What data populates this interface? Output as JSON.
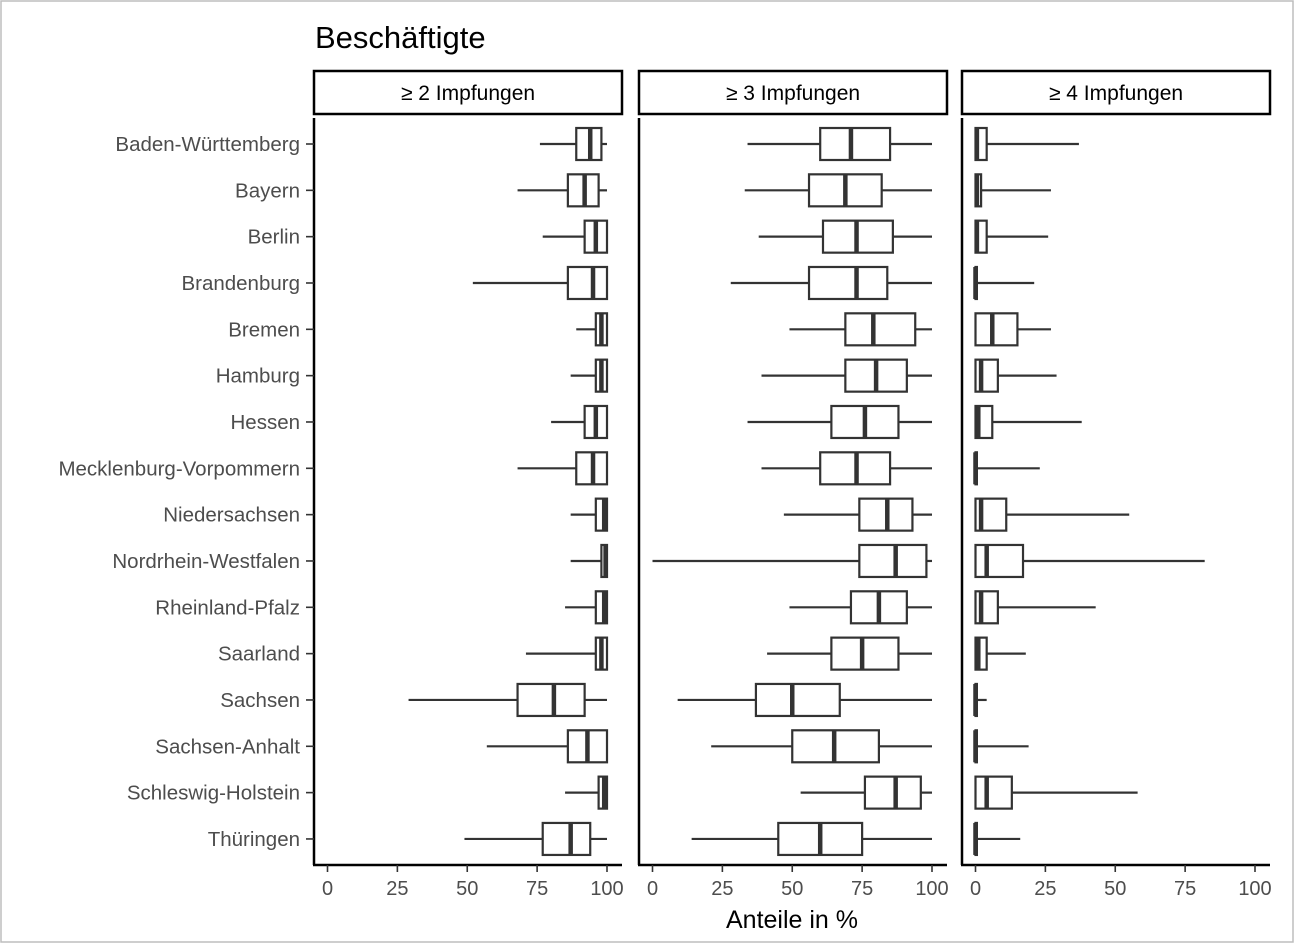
{
  "chart_data": {
    "type": "boxplot",
    "title": "Beschäftigte",
    "xlabel": "Anteile in %",
    "ylabel": "",
    "xlim": [
      0,
      100
    ],
    "x_ticks": [
      0,
      25,
      50,
      75,
      100
    ],
    "categories": [
      "Baden-Württemberg",
      "Bayern",
      "Berlin",
      "Brandenburg",
      "Bremen",
      "Hamburg",
      "Hessen",
      "Mecklenburg-Vorpommern",
      "Niedersachsen",
      "Nordrhein-Westfalen",
      "Rheinland-Pfalz",
      "Saarland",
      "Sachsen",
      "Sachsen-Anhalt",
      "Schleswig-Holstein",
      "Thüringen"
    ],
    "grid": false,
    "panels": [
      {
        "label": "≥ 2 Impfungen",
        "boxes": [
          {
            "min": 76,
            "q1": 89,
            "median": 94,
            "q3": 98,
            "max": 100
          },
          {
            "min": 68,
            "q1": 86,
            "median": 92,
            "q3": 97,
            "max": 100
          },
          {
            "min": 77,
            "q1": 92,
            "median": 96,
            "q3": 100,
            "max": 100
          },
          {
            "min": 52,
            "q1": 86,
            "median": 95,
            "q3": 100,
            "max": 100
          },
          {
            "min": 89,
            "q1": 96,
            "median": 98,
            "q3": 100,
            "max": 100
          },
          {
            "min": 87,
            "q1": 96,
            "median": 98,
            "q3": 100,
            "max": 100
          },
          {
            "min": 80,
            "q1": 92,
            "median": 96,
            "q3": 100,
            "max": 100
          },
          {
            "min": 68,
            "q1": 89,
            "median": 95,
            "q3": 100,
            "max": 100
          },
          {
            "min": 87,
            "q1": 96,
            "median": 99,
            "q3": 100,
            "max": 100
          },
          {
            "min": 87,
            "q1": 98,
            "median": 99.5,
            "q3": 100,
            "max": 100
          },
          {
            "min": 85,
            "q1": 96,
            "median": 99,
            "q3": 100,
            "max": 100
          },
          {
            "min": 71,
            "q1": 96,
            "median": 98,
            "q3": 100,
            "max": 100
          },
          {
            "min": 29,
            "q1": 68,
            "median": 81,
            "q3": 92,
            "max": 100
          },
          {
            "min": 57,
            "q1": 86,
            "median": 93,
            "q3": 100,
            "max": 100
          },
          {
            "min": 85,
            "q1": 97,
            "median": 99,
            "q3": 100,
            "max": 100
          },
          {
            "min": 49,
            "q1": 77,
            "median": 87,
            "q3": 94,
            "max": 100
          }
        ]
      },
      {
        "label": "≥ 3 Impfungen",
        "boxes": [
          {
            "min": 34,
            "q1": 60,
            "median": 71,
            "q3": 85,
            "max": 100
          },
          {
            "min": 33,
            "q1": 56,
            "median": 69,
            "q3": 82,
            "max": 100
          },
          {
            "min": 38,
            "q1": 61,
            "median": 73,
            "q3": 86,
            "max": 100
          },
          {
            "min": 28,
            "q1": 56,
            "median": 73,
            "q3": 84,
            "max": 100
          },
          {
            "min": 49,
            "q1": 69,
            "median": 79,
            "q3": 94,
            "max": 100
          },
          {
            "min": 39,
            "q1": 69,
            "median": 80,
            "q3": 91,
            "max": 100
          },
          {
            "min": 34,
            "q1": 64,
            "median": 76,
            "q3": 88,
            "max": 100
          },
          {
            "min": 39,
            "q1": 60,
            "median": 73,
            "q3": 85,
            "max": 100
          },
          {
            "min": 47,
            "q1": 74,
            "median": 84,
            "q3": 93,
            "max": 100
          },
          {
            "min": 0,
            "q1": 74,
            "median": 87,
            "q3": 98,
            "max": 100
          },
          {
            "min": 49,
            "q1": 71,
            "median": 81,
            "q3": 91,
            "max": 100
          },
          {
            "min": 41,
            "q1": 64,
            "median": 75,
            "q3": 88,
            "max": 100
          },
          {
            "min": 9,
            "q1": 37,
            "median": 50,
            "q3": 67,
            "max": 100
          },
          {
            "min": 21,
            "q1": 50,
            "median": 65,
            "q3": 81,
            "max": 100
          },
          {
            "min": 53,
            "q1": 76,
            "median": 87,
            "q3": 96,
            "max": 100
          },
          {
            "min": 14,
            "q1": 45,
            "median": 60,
            "q3": 75,
            "max": 100
          }
        ]
      },
      {
        "label": "≥ 4 Impfungen",
        "boxes": [
          {
            "min": 0,
            "q1": 0,
            "median": 0.5,
            "q3": 4,
            "max": 37
          },
          {
            "min": 0,
            "q1": 0,
            "median": 0.5,
            "q3": 2,
            "max": 27
          },
          {
            "min": 0,
            "q1": 0,
            "median": 0.5,
            "q3": 4,
            "max": 26
          },
          {
            "min": 0,
            "q1": 0,
            "median": 0,
            "q3": 0.5,
            "max": 21
          },
          {
            "min": 0,
            "q1": 0,
            "median": 6,
            "q3": 15,
            "max": 27
          },
          {
            "min": 0,
            "q1": 0,
            "median": 2,
            "q3": 8,
            "max": 29
          },
          {
            "min": 0,
            "q1": 0,
            "median": 1,
            "q3": 6,
            "max": 38
          },
          {
            "min": 0,
            "q1": 0,
            "median": 0,
            "q3": 0.5,
            "max": 23
          },
          {
            "min": 0,
            "q1": 0,
            "median": 2,
            "q3": 11,
            "max": 55
          },
          {
            "min": 0,
            "q1": 0,
            "median": 4,
            "q3": 17,
            "max": 82
          },
          {
            "min": 0,
            "q1": 0,
            "median": 2,
            "q3": 8,
            "max": 43
          },
          {
            "min": 0,
            "q1": 0,
            "median": 1,
            "q3": 4,
            "max": 18
          },
          {
            "min": 0,
            "q1": 0,
            "median": 0,
            "q3": 0.5,
            "max": 4
          },
          {
            "min": 0,
            "q1": 0,
            "median": 0,
            "q3": 0.5,
            "max": 19
          },
          {
            "min": 0,
            "q1": 0,
            "median": 4,
            "q3": 13,
            "max": 58
          },
          {
            "min": 0,
            "q1": 0,
            "median": 0,
            "q3": 0.5,
            "max": 16
          }
        ]
      }
    ]
  }
}
